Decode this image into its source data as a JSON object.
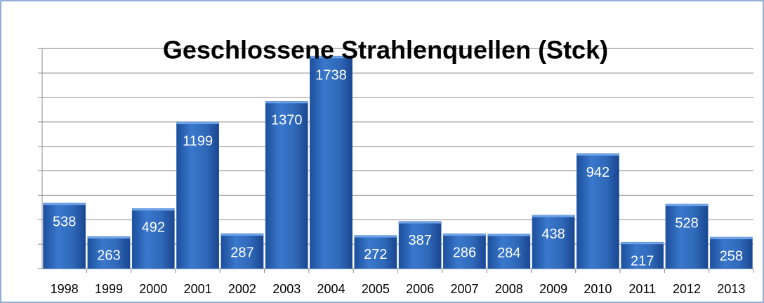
{
  "chart_data": {
    "type": "bar",
    "title": "Geschlossene Strahlenquellen (Stck)",
    "categories": [
      "1998",
      "1999",
      "2000",
      "2001",
      "2002",
      "2003",
      "2004",
      "2005",
      "2006",
      "2007",
      "2008",
      "2009",
      "2010",
      "2011",
      "2012",
      "2013"
    ],
    "values": [
      538,
      263,
      492,
      1199,
      287,
      1370,
      1738,
      272,
      387,
      286,
      284,
      438,
      942,
      217,
      528,
      258
    ],
    "color": "#2e64b4",
    "ylim": [
      0,
      1800
    ],
    "yticks": [
      0,
      200,
      400,
      600,
      800,
      1000,
      1200,
      1400,
      1600,
      1800
    ],
    "grid": true
  }
}
